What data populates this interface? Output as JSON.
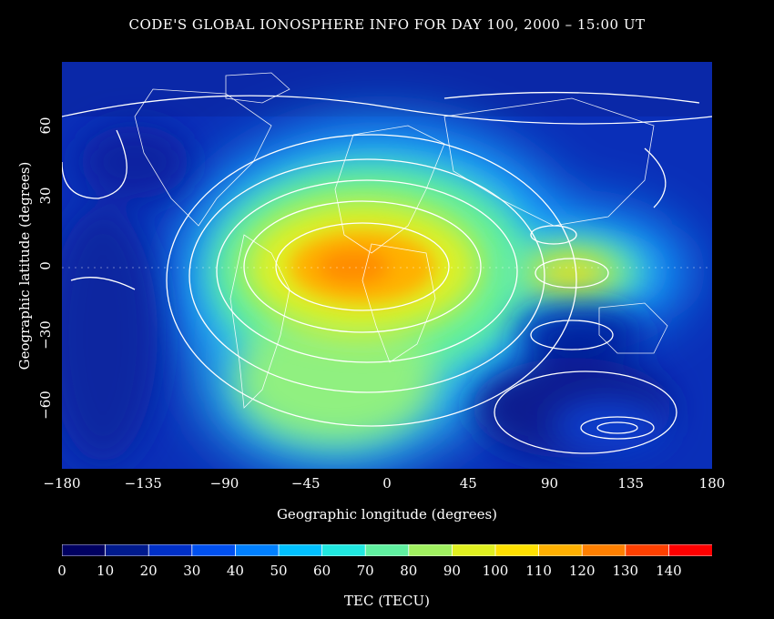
{
  "title": "CODE'S GLOBAL IONOSPHERE INFO FOR DAY 100, 2000 – 15:00 UT",
  "xaxis": {
    "label": "Geographic longitude (degrees)",
    "ticks": [
      "−180",
      "−135",
      "−90",
      "−45",
      "0",
      "45",
      "90",
      "135",
      "180"
    ],
    "range": [
      -180,
      180
    ]
  },
  "yaxis": {
    "label": "Geographic latitude (degrees)",
    "ticks": [
      "60",
      "30",
      "0",
      "−30",
      "−60"
    ],
    "range": [
      -87.5,
      87.5
    ]
  },
  "colorbar": {
    "label": "TEC (TECU)",
    "ticks": [
      "0",
      "10",
      "20",
      "30",
      "40",
      "50",
      "60",
      "70",
      "80",
      "90",
      "100",
      "110",
      "120",
      "130",
      "140"
    ],
    "colors": [
      "#000060",
      "#001a8c",
      "#0030c8",
      "#0050f0",
      "#0080ff",
      "#00c0ff",
      "#20e8e0",
      "#60f0a0",
      "#a0f060",
      "#e0f020",
      "#ffe000",
      "#ffb000",
      "#ff8000",
      "#ff4000",
      "#ff0000"
    ]
  },
  "chart_data": {
    "type": "heatmap",
    "title": "CODE'S GLOBAL IONOSPHERE INFO FOR DAY 100, 2000 – 15:00 UT",
    "xlabel": "Geographic longitude (degrees)",
    "ylabel": "Geographic latitude (degrees)",
    "value_label": "TEC (TECU)",
    "xlim": [
      -180,
      180
    ],
    "ylim": [
      -87.5,
      87.5
    ],
    "clim": [
      0,
      145
    ],
    "grid": false,
    "features": [
      {
        "name": "main-crest",
        "lon": -10,
        "lat": 0,
        "peak": 115
      },
      {
        "name": "east-crest",
        "lon": 100,
        "lat": -2,
        "peak": 95
      },
      {
        "name": "southern-low",
        "lon": 120,
        "lat": -68,
        "peak": 25
      }
    ]
  }
}
